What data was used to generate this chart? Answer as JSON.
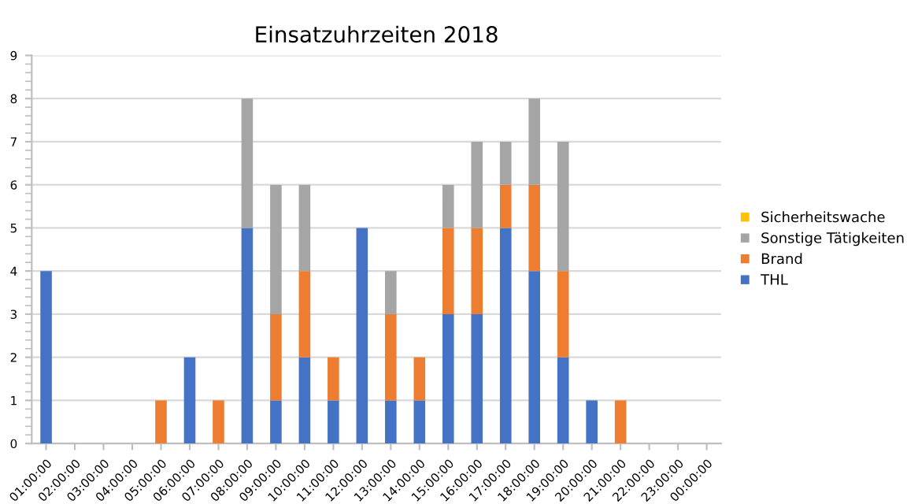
{
  "chart_data": {
    "type": "bar",
    "title": "Einsatzuhrzeiten 2018",
    "stacked": true,
    "categories": [
      "01:00:00",
      "02:00:00",
      "03:00:00",
      "04:00:00",
      "05:00:00",
      "06:00:00",
      "07:00:00",
      "08:00:00",
      "09:00:00",
      "10:00:00",
      "11:00:00",
      "12:00:00",
      "13:00:00",
      "14:00:00",
      "15:00:00",
      "16:00:00",
      "17:00:00",
      "18:00:00",
      "19:00:00",
      "20:00:00",
      "21:00:00",
      "22:00:00",
      "23:00:00",
      "00:00:00"
    ],
    "series": [
      {
        "name": "THL",
        "color": "#4472c4",
        "values": [
          4,
          0,
          0,
          0,
          0,
          2,
          0,
          5,
          1,
          2,
          1,
          5,
          1,
          1,
          3,
          3,
          5,
          4,
          2,
          1,
          0,
          0,
          0,
          0
        ]
      },
      {
        "name": "Brand",
        "color": "#ed7d31",
        "values": [
          0,
          0,
          0,
          0,
          1,
          0,
          1,
          0,
          2,
          2,
          1,
          0,
          2,
          1,
          2,
          2,
          1,
          2,
          2,
          0,
          1,
          0,
          0,
          0
        ]
      },
      {
        "name": "Sonstige Tätigkeiten",
        "color": "#a5a5a5",
        "values": [
          0,
          0,
          0,
          0,
          0,
          0,
          0,
          3,
          3,
          2,
          0,
          0,
          1,
          0,
          1,
          2,
          1,
          2,
          3,
          0,
          0,
          0,
          0,
          0
        ]
      },
      {
        "name": "Sicherheitswache",
        "color": "#ffc000",
        "values": [
          0,
          0,
          0,
          0,
          0,
          0,
          0,
          0,
          0,
          0,
          0,
          0,
          0,
          0,
          0,
          0,
          0,
          0,
          0,
          0,
          0,
          0,
          0,
          0
        ]
      }
    ],
    "ylim": [
      0,
      9
    ],
    "yticks": [
      0,
      1,
      2,
      3,
      4,
      5,
      6,
      7,
      8,
      9
    ],
    "grid": "y",
    "legend": "right"
  }
}
